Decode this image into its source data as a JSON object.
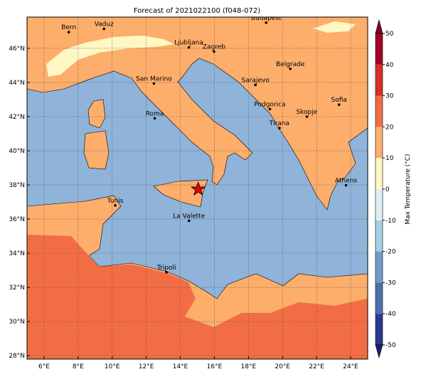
{
  "title": "Forecast of 2021022100 (f048-072)",
  "map": {
    "lonlim": [
      5,
      25
    ],
    "latlim": [
      27.8,
      47.83
    ],
    "grid": true,
    "xticks": [
      {
        "value": 6,
        "label": "6°E"
      },
      {
        "value": 8,
        "label": "8°E"
      },
      {
        "value": 10,
        "label": "10°E"
      },
      {
        "value": 12,
        "label": "12°E"
      },
      {
        "value": 14,
        "label": "14°E"
      },
      {
        "value": 16,
        "label": "16°E"
      },
      {
        "value": 18,
        "label": "18°E"
      },
      {
        "value": 20,
        "label": "20°E"
      },
      {
        "value": 22,
        "label": "22°E"
      },
      {
        "value": 24,
        "label": "24°E"
      }
    ],
    "yticks": [
      {
        "value": 28,
        "label": "28°N"
      },
      {
        "value": 30,
        "label": "30°N"
      },
      {
        "value": 32,
        "label": "32°N"
      },
      {
        "value": 34,
        "label": "34°N"
      },
      {
        "value": 36,
        "label": "36°N"
      },
      {
        "value": 38,
        "label": "38°N"
      },
      {
        "value": 40,
        "label": "40°N"
      },
      {
        "value": 42,
        "label": "42°N"
      },
      {
        "value": 44,
        "label": "44°N"
      },
      {
        "value": 46,
        "label": "46°N"
      }
    ],
    "cities": [
      {
        "name": "Bern",
        "lon": 7.45,
        "lat": 46.95
      },
      {
        "name": "Vaduz",
        "lon": 9.52,
        "lat": 47.14
      },
      {
        "name": "Budapest",
        "lon": 19.04,
        "lat": 47.5
      },
      {
        "name": "Ljubljana",
        "lon": 14.5,
        "lat": 46.05
      },
      {
        "name": "Zagreb",
        "lon": 15.98,
        "lat": 45.81
      },
      {
        "name": "Belgrade",
        "lon": 20.46,
        "lat": 44.8
      },
      {
        "name": "San Marino",
        "lon": 12.45,
        "lat": 43.94
      },
      {
        "name": "Sarajevo",
        "lon": 18.41,
        "lat": 43.86
      },
      {
        "name": "Sofia",
        "lon": 23.32,
        "lat": 42.7
      },
      {
        "name": "Roma",
        "lon": 12.5,
        "lat": 41.9
      },
      {
        "name": "Podgorica",
        "lon": 19.26,
        "lat": 42.44
      },
      {
        "name": "Skopje",
        "lon": 21.43,
        "lat": 42.0
      },
      {
        "name": "Tirana",
        "lon": 19.82,
        "lat": 41.33
      },
      {
        "name": "Athens",
        "lon": 23.73,
        "lat": 37.98
      },
      {
        "name": "Tunis",
        "lon": 10.18,
        "lat": 36.8
      },
      {
        "name": "La Valette",
        "lon": 14.51,
        "lat": 35.9
      },
      {
        "name": "Tripoli",
        "lon": 13.19,
        "lat": 32.89
      }
    ],
    "marker": {
      "lon": 15.05,
      "lat": 37.75,
      "color": "#e8000b"
    }
  },
  "colorbar": {
    "label": "Max Temperature (°C)",
    "ticks": [
      -50,
      -40,
      -30,
      -20,
      -10,
      0,
      10,
      20,
      30,
      40,
      50
    ],
    "colors": [
      "#2b3990",
      "#4a70b0",
      "#6f9cc9",
      "#a6cfe4",
      "#dcf0f6",
      "#fff7c4",
      "#fdb06e",
      "#f26d44",
      "#d73027",
      "#a50026"
    ],
    "under_color": "#1c1f6e",
    "over_color": "#7f0020"
  }
}
